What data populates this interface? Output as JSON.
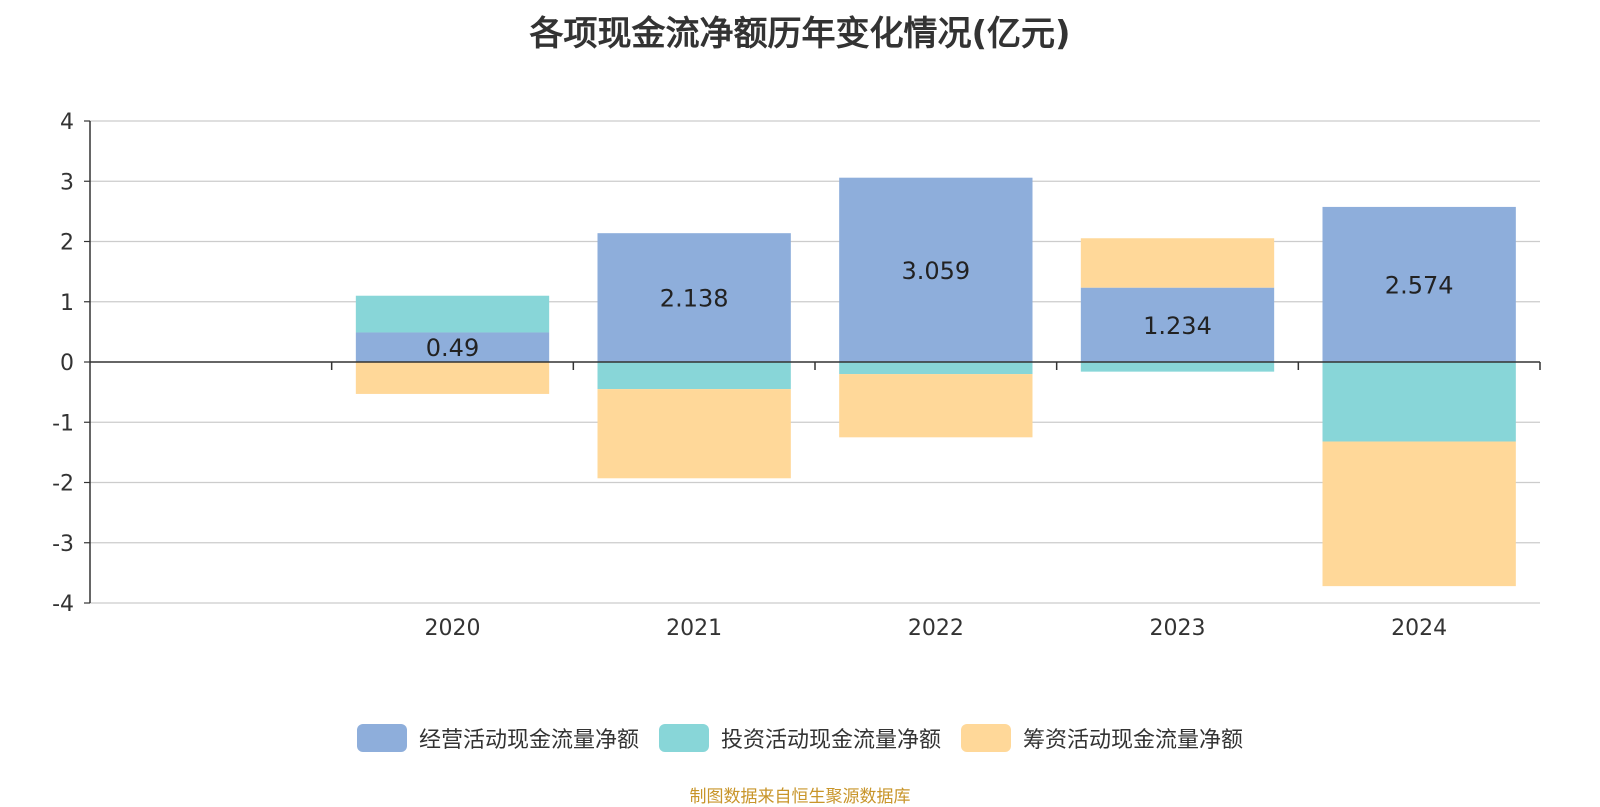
{
  "chart_data": {
    "type": "bar",
    "stacked": true,
    "title": "各项现金流净额历年变化情况(亿元)",
    "categories": [
      "2020",
      "2021",
      "2022",
      "2023",
      "2024"
    ],
    "ylim": [
      -4,
      4
    ],
    "yticks": [
      "4",
      "3",
      "2",
      "1",
      "0",
      "-1",
      "-2",
      "-3",
      "-4"
    ],
    "grid": true,
    "legend_position": "bottom",
    "series": [
      {
        "name": "经营活动现金流量净额",
        "color": "#8eaedb",
        "values": [
          0.49,
          2.138,
          3.059,
          1.234,
          2.574
        ],
        "labels": [
          "0.49",
          "2.138",
          "3.059",
          "1.234",
          "2.574"
        ]
      },
      {
        "name": "投资活动现金流量净额",
        "color": "#88d6d8",
        "values": [
          0.61,
          -0.45,
          -0.2,
          -0.16,
          -1.32
        ]
      },
      {
        "name": "筹资活动现金流量净额",
        "color": "#ffd899",
        "values": [
          -0.53,
          -1.48,
          -1.05,
          0.82,
          -2.4
        ]
      }
    ]
  },
  "source_note": "制图数据来自恒生聚源数据库"
}
